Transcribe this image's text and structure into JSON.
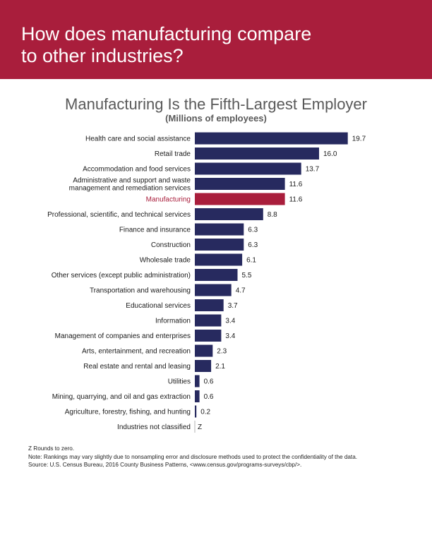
{
  "banner": {
    "title_line1": "How does manufacturing compare",
    "title_line2": "to other industries?"
  },
  "colors": {
    "banner": "#a91e3c",
    "bar_default": "#272a5f",
    "bar_highlight": "#a91e3c",
    "label_highlight": "#a91e3c",
    "axis_line": "#b0b0b0"
  },
  "chart_data": {
    "type": "bar",
    "orientation": "horizontal",
    "title": "Manufacturing Is the Fifth-Largest Employer",
    "subtitle": "(Millions of employees)",
    "xlabel": "",
    "ylabel": "",
    "xlim": [
      0,
      20
    ],
    "grid": false,
    "legend": "none",
    "highlight_index": 4,
    "categories": [
      [
        "Health care and social assistance"
      ],
      [
        "Retail trade"
      ],
      [
        "Accommodation and food services"
      ],
      [
        "Administrative and support and waste",
        "management and remediation services"
      ],
      [
        "Manufacturing"
      ],
      [
        "Professional, scientific, and technical services"
      ],
      [
        "Finance and insurance"
      ],
      [
        "Construction"
      ],
      [
        "Wholesale trade"
      ],
      [
        "Other services (except public administration)"
      ],
      [
        "Transportation and warehousing"
      ],
      [
        "Educational services"
      ],
      [
        "Information"
      ],
      [
        "Management of companies and enterprises"
      ],
      [
        "Arts, entertainment, and recreation"
      ],
      [
        "Real estate and rental and leasing"
      ],
      [
        "Utilities"
      ],
      [
        "Mining, quarrying, and oil and gas extraction"
      ],
      [
        "Agriculture, forestry, fishing, and hunting"
      ],
      [
        "Industries not classified"
      ]
    ],
    "values": [
      19.7,
      16.0,
      13.7,
      11.6,
      11.6,
      8.8,
      6.3,
      6.3,
      6.1,
      5.5,
      4.7,
      3.7,
      3.4,
      3.4,
      2.3,
      2.1,
      0.6,
      0.6,
      0.2,
      0
    ],
    "value_labels": [
      "19.7",
      "16.0",
      "13.7",
      "11.6",
      "11.6",
      "8.8",
      "6.3",
      "6.3",
      "6.1",
      "5.5",
      "4.7",
      "3.7",
      "3.4",
      "3.4",
      "2.3",
      "2.1",
      "0.6",
      "0.6",
      "0.2",
      "Z"
    ]
  },
  "notes": {
    "line1": "Z Rounds to zero.",
    "line2": "Note: Rankings may vary slightly due to nonsampling error and disclosure methods used to protect the confidentiality of the data.",
    "line3": "Source: U.S. Census Bureau, 2016 County Business Patterns, <www.census.gov/programs-surveys/cbp/>."
  }
}
